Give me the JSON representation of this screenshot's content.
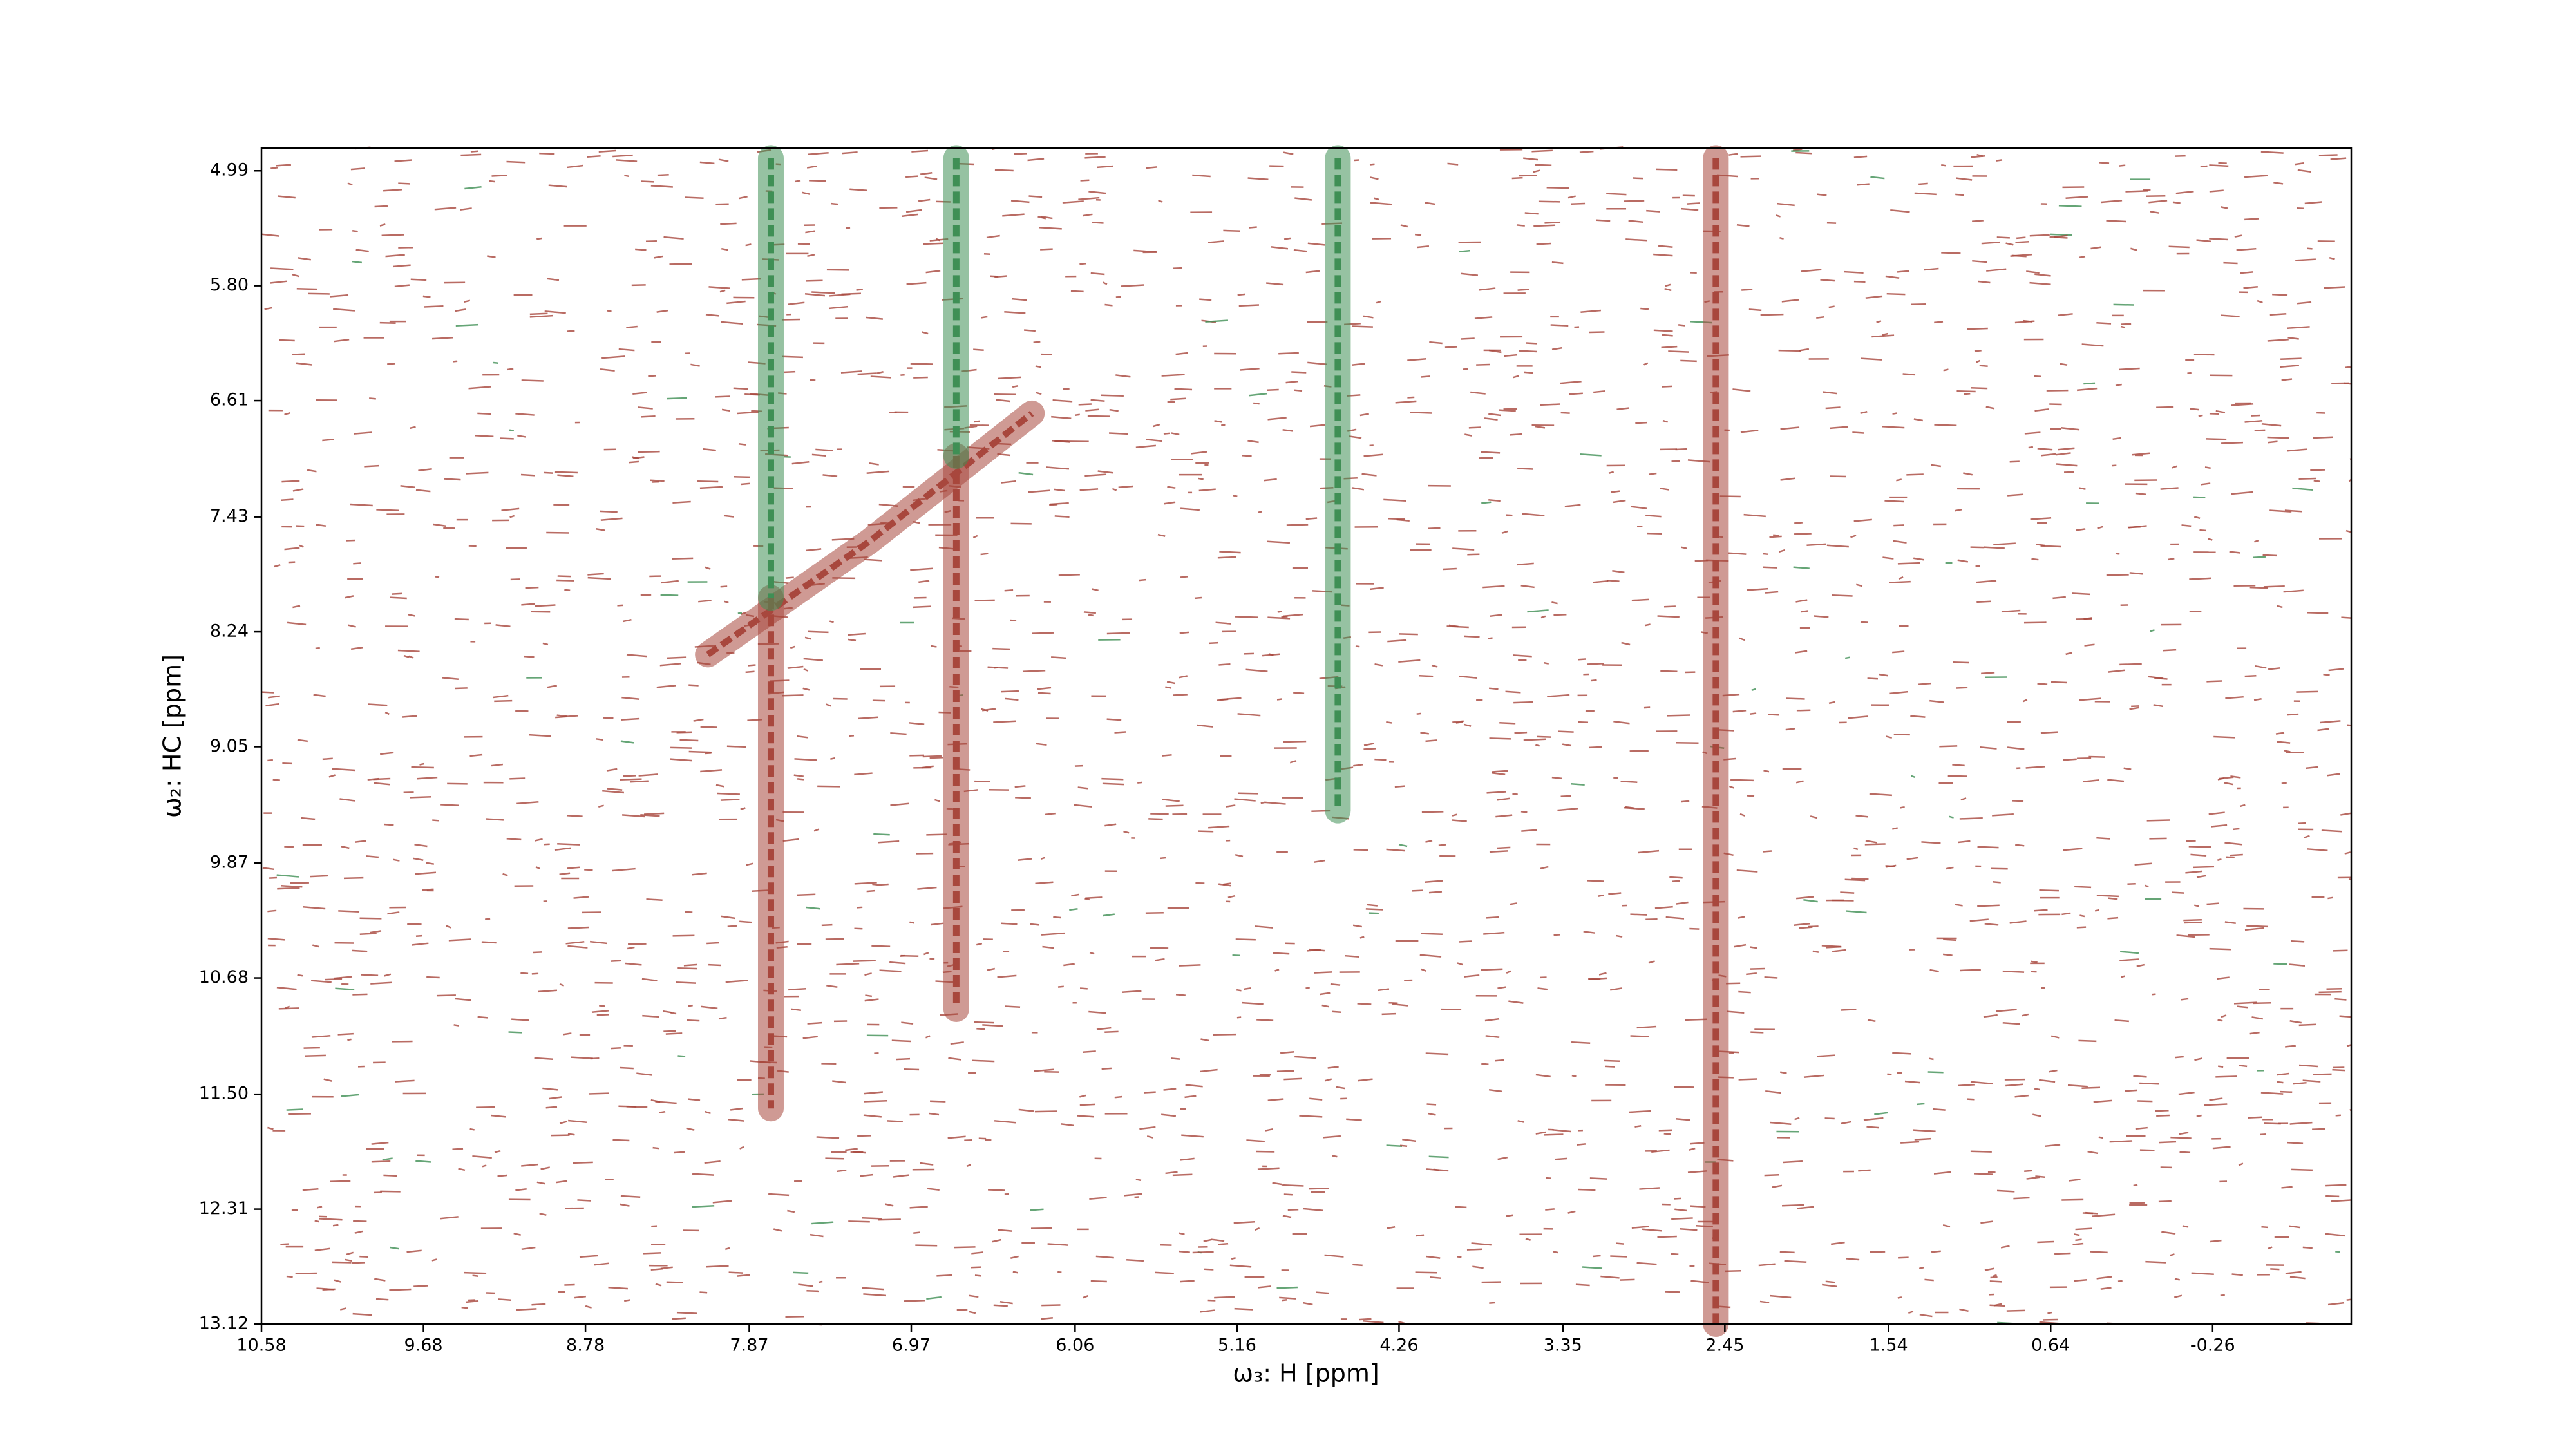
{
  "chart_data": {
    "type": "contour",
    "xlabel": "ω₃: H [ppm]",
    "ylabel": "ω₂: HC [ppm]",
    "xlim": [
      10.58,
      -1.03
    ],
    "ylim": [
      13.12,
      4.83
    ],
    "xticks": [
      10.58,
      9.68,
      8.78,
      7.87,
      6.97,
      6.06,
      5.16,
      4.26,
      3.35,
      2.45,
      1.54,
      0.64,
      -0.26
    ],
    "yticks": [
      4.99,
      {
        "value": 5.8,
        "label": "5.80"
      },
      6.61,
      7.43,
      8.24,
      9.05,
      9.87,
      10.68,
      {
        "value": 11.5,
        "label": "11.50"
      },
      12.31,
      13.12
    ],
    "positive_color": "#a8473d",
    "negative_color": "#3f8f55",
    "positive": [
      {
        "x": [
          7.75,
          7.75
        ],
        "y": [
          8.0,
          11.6
        ]
      },
      {
        "x": [
          6.72,
          6.72
        ],
        "y": [
          7.0,
          10.9
        ]
      },
      {
        "x": [
          8.1,
          7.2,
          6.3
        ],
        "y": [
          8.4,
          7.6,
          6.7
        ]
      },
      {
        "x": [
          2.5,
          2.5
        ],
        "y": [
          4.9,
          13.12
        ]
      }
    ],
    "negative": [
      {
        "x": [
          7.75,
          7.75
        ],
        "y": [
          4.9,
          8.0
        ]
      },
      {
        "x": [
          6.72,
          6.72
        ],
        "y": [
          4.9,
          7.0
        ]
      },
      {
        "x": [
          4.6,
          4.6
        ],
        "y": [
          4.9,
          9.5
        ]
      }
    ]
  }
}
